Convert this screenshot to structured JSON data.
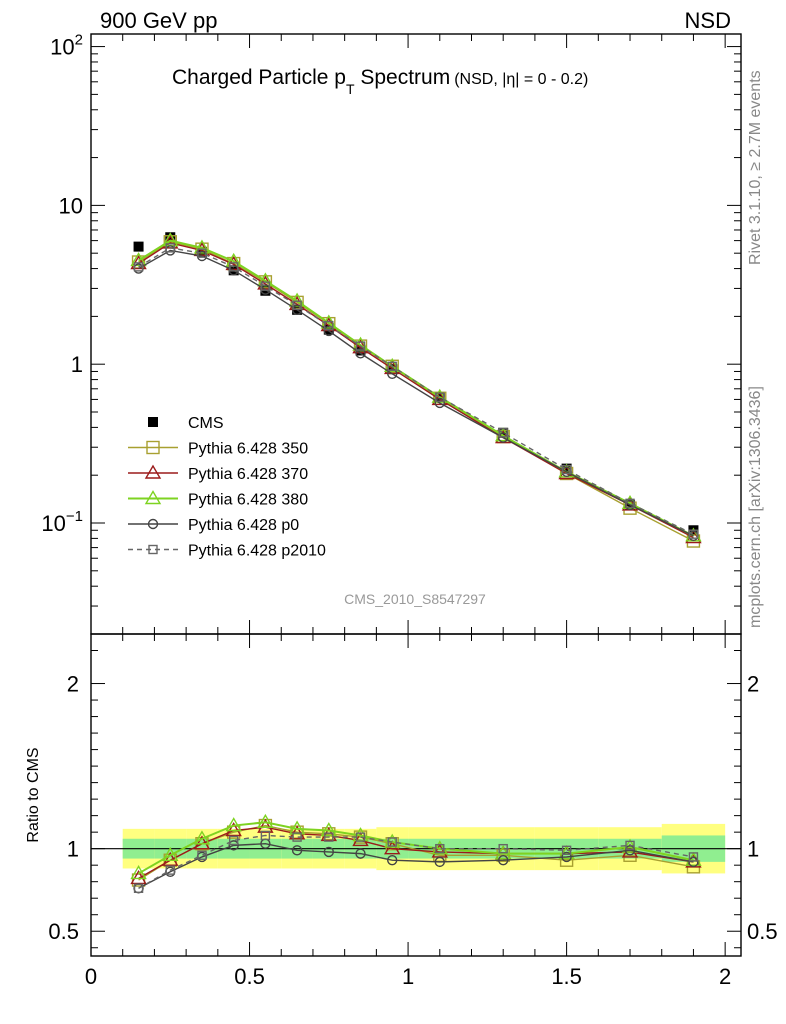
{
  "header": {
    "left": "900 GeV pp",
    "right": "NSD"
  },
  "side_labels": {
    "top": "Rivet 3.1.10, ≥ 2.7M events",
    "bottom": "mcplots.cern.ch [arXiv:1306.3436]"
  },
  "title": {
    "main": "Charged Particle p",
    "sub_T": "T",
    "main2": " Spectrum",
    "extra": "(NSD, |η| =   0 - 0.2)"
  },
  "annotation": "CMS_2010_S8547297",
  "ratio_ylabel": "Ratio to CMS",
  "colors": {
    "cms": "#000000",
    "p350": "#a8a030",
    "p370": "#9b1b1b",
    "p380": "#7ed321",
    "p0": "#444444",
    "p2010": "#666666",
    "band_inner": "#90ee90",
    "band_outer": "#ffff80"
  },
  "chart_data": [
    {
      "type": "line",
      "panel": "main",
      "title": "Charged Particle pT Spectrum",
      "yscale": "log",
      "xlim": [
        0,
        2.05
      ],
      "ylim": [
        0.02,
        120
      ],
      "y_ticks": [
        {
          "value": 0.1,
          "base": "10",
          "exp": "−1"
        },
        {
          "value": 1,
          "base": "1",
          "exp": ""
        },
        {
          "value": 10,
          "base": "10",
          "exp": ""
        },
        {
          "value": 100,
          "base": "10",
          "exp": "2"
        }
      ],
      "x": [
        0.15,
        0.25,
        0.35,
        0.45,
        0.55,
        0.65,
        0.75,
        0.85,
        0.95,
        1.1,
        1.3,
        1.5,
        1.7,
        1.9
      ],
      "legend_placement": "lower-left",
      "series": [
        {
          "name": "CMS",
          "key": "cms",
          "marker": "filled-square",
          "values": [
            5.5,
            6.3,
            5.1,
            3.9,
            2.9,
            2.2,
            1.65,
            1.22,
            0.93,
            0.62,
            0.37,
            0.22,
            0.13,
            0.09
          ]
        },
        {
          "name": "Pythia 6.428 350",
          "key": "p350",
          "marker": "open-square",
          "values": [
            4.4,
            5.9,
            5.3,
            4.3,
            3.3,
            2.45,
            1.8,
            1.3,
            0.97,
            0.61,
            0.35,
            0.205,
            0.124,
            0.077
          ]
        },
        {
          "name": "Pythia 6.428 370",
          "key": "p370",
          "marker": "open-triangle",
          "values": [
            4.3,
            5.8,
            5.2,
            4.25,
            3.2,
            2.38,
            1.75,
            1.27,
            0.94,
            0.6,
            0.345,
            0.205,
            0.13,
            0.081
          ]
        },
        {
          "name": "Pythia 6.428 380",
          "key": "p380",
          "marker": "open-triangle",
          "values": [
            4.5,
            6.0,
            5.4,
            4.45,
            3.35,
            2.5,
            1.82,
            1.32,
            0.97,
            0.62,
            0.355,
            0.21,
            0.133,
            0.083
          ]
        },
        {
          "name": "Pythia 6.428 p0",
          "key": "p0",
          "marker": "open-circle",
          "values": [
            4.0,
            5.2,
            4.8,
            3.9,
            2.95,
            2.2,
            1.62,
            1.17,
            0.87,
            0.57,
            0.345,
            0.21,
            0.13,
            0.083
          ]
        },
        {
          "name": "Pythia 6.428 p2010",
          "key": "p2010",
          "marker": "small-open-square",
          "dashed": true,
          "values": [
            4.1,
            5.4,
            5.0,
            4.1,
            3.1,
            2.35,
            1.75,
            1.3,
            0.97,
            0.62,
            0.37,
            0.217,
            0.133,
            0.085
          ]
        }
      ]
    },
    {
      "type": "line",
      "panel": "ratio",
      "ylabel": "Ratio to CMS",
      "xlim": [
        0,
        2.05
      ],
      "ylim": [
        0.35,
        2.3
      ],
      "y_ticks": [
        {
          "value": 0.5,
          "label": "0.5"
        },
        {
          "value": 1,
          "label": "1"
        },
        {
          "value": 2,
          "label": "2"
        }
      ],
      "x_ticks": [
        {
          "value": 0,
          "label": "0"
        },
        {
          "value": 0.5,
          "label": "0.5"
        },
        {
          "value": 1,
          "label": "1"
        },
        {
          "value": 1.5,
          "label": "1.5"
        },
        {
          "value": 2,
          "label": "2"
        }
      ],
      "x": [
        0.15,
        0.25,
        0.35,
        0.45,
        0.55,
        0.65,
        0.75,
        0.85,
        0.95,
        1.1,
        1.3,
        1.5,
        1.7,
        1.9
      ],
      "bins": [
        [
          0.1,
          0.2
        ],
        [
          0.2,
          0.3
        ],
        [
          0.3,
          0.4
        ],
        [
          0.4,
          0.5
        ],
        [
          0.5,
          0.6
        ],
        [
          0.6,
          0.7
        ],
        [
          0.7,
          0.8
        ],
        [
          0.8,
          0.9
        ],
        [
          0.9,
          1.0
        ],
        [
          1.0,
          1.2
        ],
        [
          1.2,
          1.4
        ],
        [
          1.4,
          1.6
        ],
        [
          1.6,
          1.8
        ],
        [
          1.8,
          2.0
        ]
      ],
      "band_inner": [
        0.06,
        0.06,
        0.06,
        0.06,
        0.06,
        0.06,
        0.06,
        0.06,
        0.06,
        0.06,
        0.06,
        0.06,
        0.06,
        0.08
      ],
      "band_outer": [
        0.12,
        0.12,
        0.12,
        0.12,
        0.12,
        0.12,
        0.12,
        0.12,
        0.13,
        0.13,
        0.13,
        0.13,
        0.13,
        0.15
      ],
      "series": [
        {
          "name": "Pythia 6.428 350",
          "key": "p350",
          "marker": "open-square",
          "values": [
            0.81,
            0.93,
            1.03,
            1.1,
            1.14,
            1.1,
            1.09,
            1.07,
            1.03,
            0.96,
            0.96,
            0.93,
            0.96,
            0.89
          ]
        },
        {
          "name": "Pythia 6.428 370",
          "key": "p370",
          "marker": "open-triangle",
          "values": [
            0.82,
            0.93,
            1.03,
            1.11,
            1.13,
            1.09,
            1.08,
            1.05,
            1.0,
            0.98,
            0.97,
            0.97,
            0.98,
            0.92
          ]
        },
        {
          "name": "Pythia 6.428 380",
          "key": "p380",
          "marker": "open-triangle",
          "values": [
            0.85,
            0.96,
            1.06,
            1.14,
            1.16,
            1.12,
            1.11,
            1.08,
            1.04,
            1.0,
            0.97,
            0.97,
            1.01,
            0.93
          ]
        },
        {
          "name": "Pythia 6.428 p0",
          "key": "p0",
          "marker": "open-circle",
          "values": [
            0.76,
            0.86,
            0.95,
            1.02,
            1.03,
            0.99,
            0.98,
            0.97,
            0.93,
            0.92,
            0.93,
            0.95,
            0.99,
            0.92
          ]
        },
        {
          "name": "Pythia 6.428 p2010",
          "key": "p2010",
          "marker": "small-open-square",
          "dashed": true,
          "values": [
            0.76,
            0.87,
            0.96,
            1.05,
            1.08,
            1.07,
            1.07,
            1.07,
            1.04,
            1.0,
            1.0,
            0.99,
            1.02,
            0.95
          ]
        }
      ]
    }
  ]
}
